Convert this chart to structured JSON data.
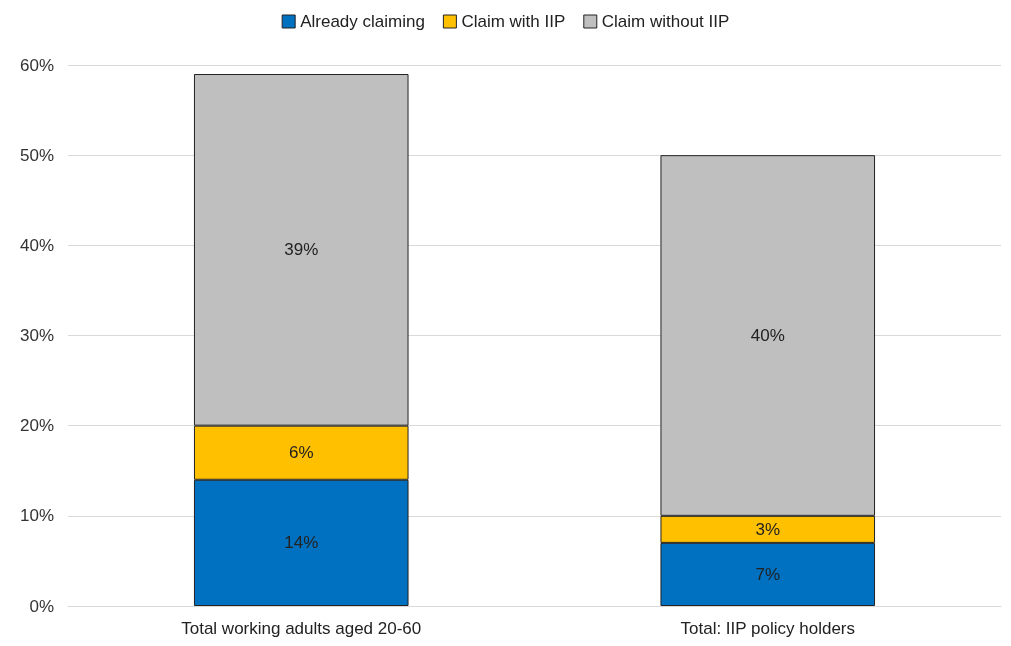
{
  "chart_data": {
    "type": "bar",
    "stacked": true,
    "categories": [
      "Total working adults aged 20-60",
      "Total: IIP policy holders"
    ],
    "series": [
      {
        "name": "Already claiming",
        "color": "#0070c0",
        "values": [
          14,
          7
        ],
        "value_labels": [
          "14%",
          "7%"
        ]
      },
      {
        "name": "Claim with IIP",
        "color": "#ffc000",
        "values": [
          6,
          3
        ],
        "value_labels": [
          "6%",
          "3%"
        ]
      },
      {
        "name": "Claim without IIP",
        "color": "#bfbfbf",
        "values": [
          39,
          40
        ],
        "value_labels": [
          "39%",
          "40%"
        ]
      }
    ],
    "ylim": [
      0,
      60
    ],
    "yticks": [
      {
        "value": 0,
        "label": "0%"
      },
      {
        "value": 10,
        "label": "10%"
      },
      {
        "value": 20,
        "label": "20%"
      },
      {
        "value": 30,
        "label": "30%"
      },
      {
        "value": 40,
        "label": "40%"
      },
      {
        "value": 50,
        "label": "50%"
      },
      {
        "value": 60,
        "label": "60%"
      }
    ],
    "grid": "y",
    "legend": "top"
  }
}
